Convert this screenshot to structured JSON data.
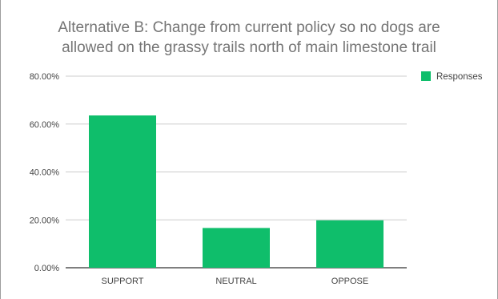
{
  "chart_data": {
    "type": "bar",
    "title_lines": [
      "Alternative B: Change from current policy so no dogs are",
      "allowed on the grassy trails north of main limestone trail"
    ],
    "xlabel": "",
    "ylabel": "",
    "categories": [
      "SUPPORT",
      "NEUTRAL",
      "OPPOSE"
    ],
    "series": [
      {
        "name": "Responses",
        "values": [
          63.6,
          16.6,
          19.8
        ],
        "color": "#0fbe6b"
      }
    ],
    "ylim": [
      0,
      80
    ],
    "yticks": [
      0,
      20,
      40,
      60,
      80
    ],
    "ytick_labels": [
      "0.00%",
      "20.00%",
      "40.00%",
      "60.00%",
      "80.00%"
    ],
    "grid": true,
    "legend_position": "top-right"
  }
}
